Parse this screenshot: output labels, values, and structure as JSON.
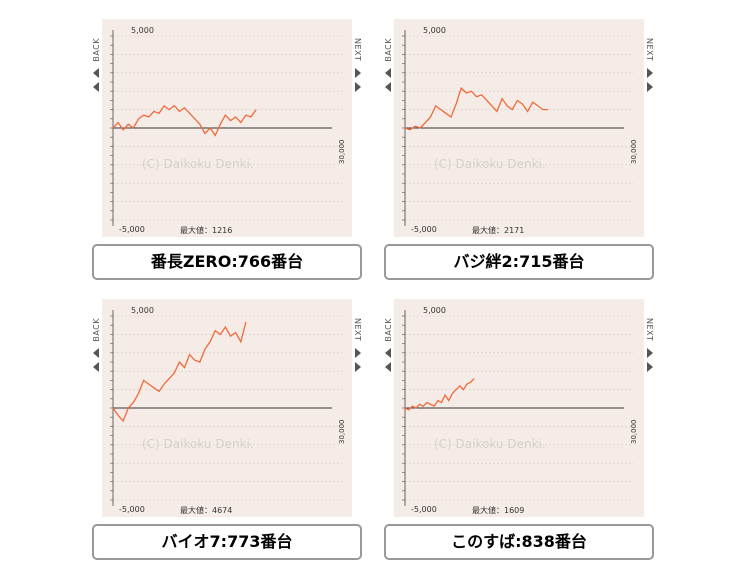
{
  "labels": {
    "back": "BACK",
    "next": "NEXT",
    "max_prefix": "最大値："
  },
  "colors": {
    "line": "#f06a3c",
    "axis": "#666666",
    "watermark": "#d6cfcb"
  },
  "chart_data": [
    {
      "type": "line",
      "caption": "番長ZERO:766番台",
      "watermark": "(C) Daikoku Denki.",
      "ytick_top": "5,000",
      "ytick_bottom": "-5,000",
      "xtick_right": "30,000",
      "ylim": [
        -5000,
        5000
      ],
      "xlim": [
        0,
        30000
      ],
      "max_value": "1216",
      "x": [
        0,
        700,
        1400,
        2100,
        2800,
        3500,
        4200,
        4900,
        5600,
        6300,
        7000,
        7700,
        8400,
        9100,
        9800,
        10500,
        11200,
        11900,
        12600,
        13300,
        14000,
        14700,
        15400,
        16100,
        16800,
        17500,
        18200,
        18900,
        19600
      ],
      "y": [
        0,
        300,
        -100,
        200,
        0,
        500,
        700,
        600,
        900,
        800,
        1200,
        1000,
        1216,
        900,
        1100,
        800,
        500,
        200,
        -300,
        0,
        -400,
        200,
        700,
        400,
        600,
        300,
        700,
        600,
        1000
      ]
    },
    {
      "type": "line",
      "caption": "バジ絆2:715番台",
      "watermark": "(C) Daikoku Denki.",
      "ytick_top": "5,000",
      "ytick_bottom": "-5,000",
      "xtick_right": "30,000",
      "ylim": [
        -5000,
        5000
      ],
      "xlim": [
        0,
        30000
      ],
      "max_value": "2171",
      "x": [
        0,
        700,
        1400,
        2100,
        2800,
        3500,
        4200,
        4900,
        5600,
        6300,
        7000,
        7700,
        8400,
        9100,
        9800,
        10500,
        11200,
        11900,
        12600,
        13300,
        14000,
        14700,
        15400,
        16100,
        16800,
        17500,
        18200,
        18900,
        19600
      ],
      "y": [
        0,
        -100,
        100,
        0,
        300,
        600,
        1200,
        1000,
        800,
        600,
        1300,
        2171,
        1900,
        2000,
        1700,
        1800,
        1500,
        1200,
        900,
        1600,
        1200,
        1000,
        1500,
        1300,
        900,
        1400,
        1200,
        1000,
        1000
      ]
    },
    {
      "type": "line",
      "caption": "バイオ7:773番台",
      "watermark": "(C) Daikoku Denki.",
      "ytick_top": "5,000",
      "ytick_bottom": "-5,000",
      "xtick_right": "30,000",
      "ylim": [
        -5000,
        5000
      ],
      "xlim": [
        0,
        30000
      ],
      "max_value": "4674",
      "x": [
        0,
        700,
        1400,
        2100,
        2800,
        3500,
        4200,
        4900,
        5600,
        6300,
        7000,
        7700,
        8400,
        9100,
        9800,
        10500,
        11200,
        11900,
        12600,
        13300,
        14000,
        14700,
        15400,
        16100,
        16800,
        17500,
        18200
      ],
      "y": [
        0,
        -400,
        -700,
        0,
        300,
        800,
        1500,
        1300,
        1100,
        900,
        1300,
        1600,
        1900,
        2500,
        2200,
        2900,
        2600,
        2500,
        3200,
        3600,
        4200,
        4000,
        4400,
        3900,
        4100,
        3600,
        4674
      ]
    },
    {
      "type": "line",
      "caption": "このすば:838番台",
      "watermark": "(C) Daikoku Denki.",
      "ytick_top": "5,000",
      "ytick_bottom": "-5,000",
      "xtick_right": "30,000",
      "ylim": [
        -5000,
        5000
      ],
      "xlim": [
        0,
        30000
      ],
      "max_value": "1609",
      "x": [
        0,
        500,
        1000,
        1500,
        2000,
        2500,
        3000,
        3500,
        4000,
        4500,
        5000,
        5500,
        6000,
        6500,
        7000,
        7500,
        8000,
        8500,
        9000,
        9500
      ],
      "y": [
        0,
        -100,
        100,
        0,
        200,
        100,
        300,
        200,
        100,
        400,
        300,
        700,
        400,
        800,
        1000,
        1200,
        1000,
        1300,
        1400,
        1609
      ]
    }
  ]
}
